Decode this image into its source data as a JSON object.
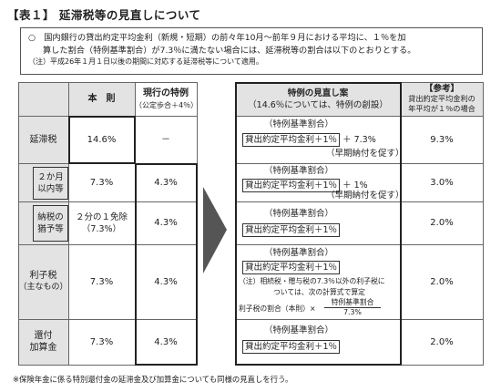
{
  "title": "【表１】 延滞税等の見直しについて",
  "note": {
    "bullet": "○",
    "line1": "国内銀行の貸出約定平均金利（新規・短期）の前々年10月～前年９月における平均に、１％を加",
    "line2": "算した割合（特例基準割合）が7.3％に満たない場合には、延滞税等の割合は以下のとおりとする。",
    "line3": "（注）平成26年１月１日以後の期間に対応する延滞税等について適用。"
  },
  "left_table": {
    "header_honsoku": "本　則",
    "header_tokurei": "現行の特例",
    "header_tokurei_sub": "（公定歩合＋4％）",
    "rows": [
      {
        "label": "延滞税",
        "honsoku": "14.6%",
        "tokurei": "－"
      },
      {
        "label_line1": "２か月",
        "label_line2": "以内等",
        "honsoku": "7.3%",
        "tokurei": "4.3%"
      },
      {
        "label_line1": "納税の",
        "label_line2": "猶予等",
        "honsoku_line1": "２分の１免除",
        "honsoku_line2": "（7.3%）",
        "tokurei": "4.3%"
      },
      {
        "label_line1": "利子税",
        "label_line2": "（主なもの）",
        "honsoku": "7.3%",
        "tokurei": "4.3%"
      },
      {
        "label_line1": "還付",
        "label_line2": "加算金",
        "honsoku": "7.3%",
        "tokurei": "4.3%"
      }
    ]
  },
  "right_table": {
    "header_line1": "特例の見直し案",
    "header_line2": "（14.6％については、特例の創設）",
    "ref_title": "【参考】",
    "ref_sub1": "貸出約定平均金利の",
    "ref_sub2": "年平均が１％の場合",
    "tokurei_label": "（特例基準割合）",
    "formula_base": "貸出約定平均金利＋1％",
    "plus73": "＋ 7.3%",
    "plus1": "＋ 1%",
    "early": "（早期納付を促す）",
    "note_line1": "（注）相続税・贈与税の7.3％以外の利子税に",
    "note_line2": "ついては、次の計算式で算定",
    "calc_left": "利子税の割合（本則）×",
    "calc_num": "特例基準割合",
    "calc_den": "7.3%",
    "refs": [
      "9.3%",
      "3.0%",
      "2.0%",
      "2.0%",
      "2.0%"
    ]
  },
  "footer": "※保険年金に係る特別還付金の延滞金及び加算金についても同様の見直しを行う。"
}
